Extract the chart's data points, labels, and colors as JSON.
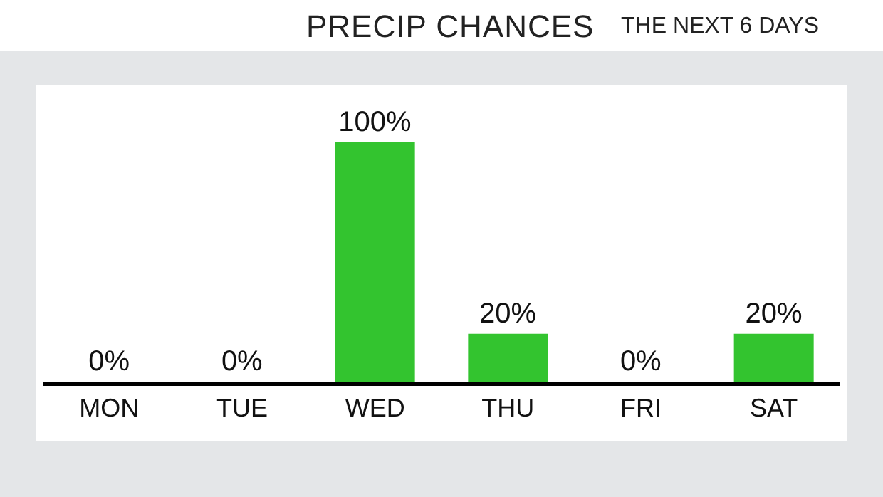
{
  "chart_data": {
    "type": "bar",
    "title": "PRECIP CHANCES",
    "subtitle": "THE NEXT 6 DAYS",
    "categories": [
      "MON",
      "TUE",
      "WED",
      "THU",
      "FRI",
      "SAT"
    ],
    "values": [
      0,
      0,
      100,
      20,
      0,
      20
    ],
    "value_labels": [
      "0%",
      "0%",
      "100%",
      "20%",
      "0%",
      "20%"
    ],
    "color": "#33c42f"
  }
}
